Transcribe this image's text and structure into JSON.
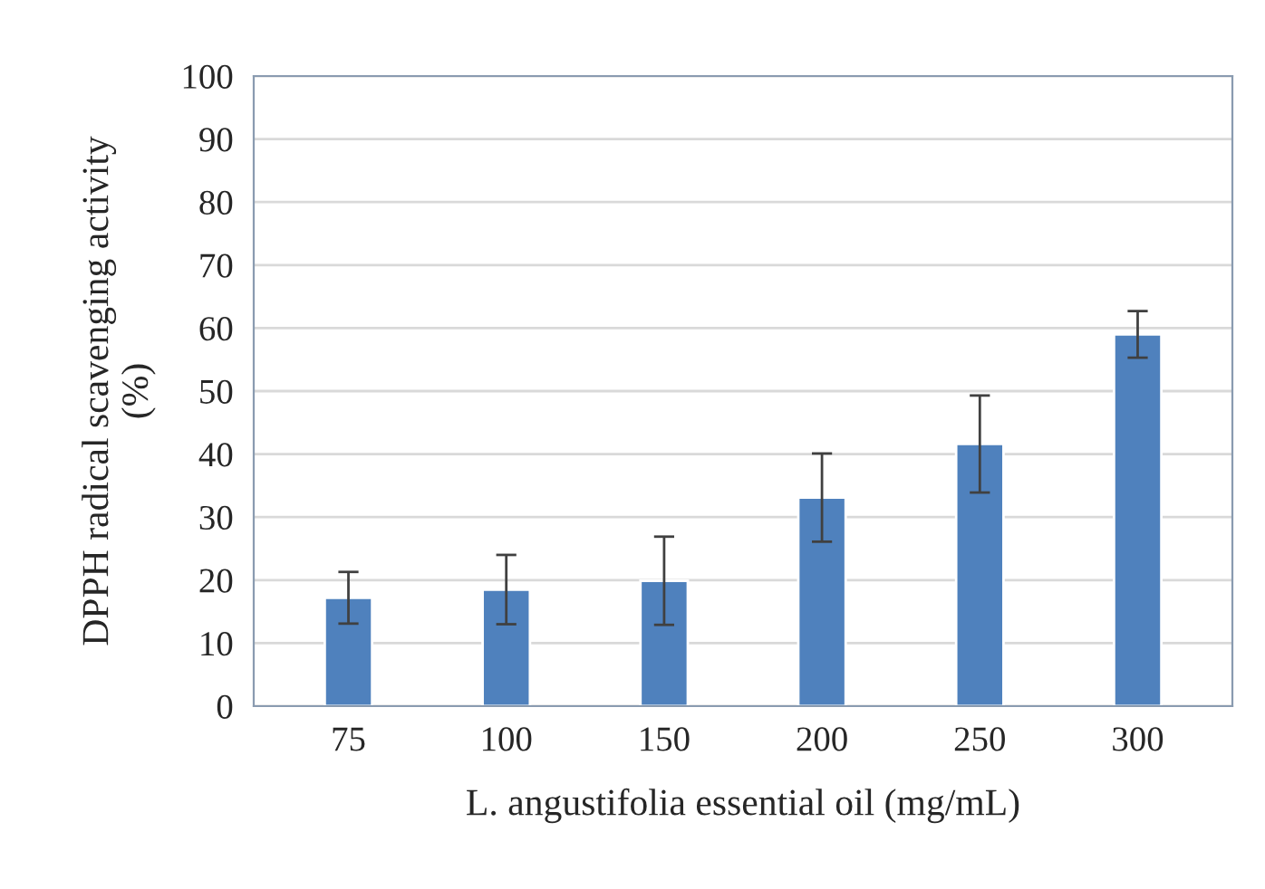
{
  "chart_data": {
    "type": "bar",
    "xlabel": "L. angustifolia essential oil (mg/mL)",
    "ylabel": "DPPH radical scavenging activity\n(%)",
    "categories": [
      "75",
      "100",
      "150",
      "200",
      "250",
      "300"
    ],
    "values": [
      17.2,
      18.5,
      19.9,
      33.1,
      41.6,
      59.0
    ],
    "errors": [
      4.1,
      5.5,
      7.0,
      7.0,
      7.7,
      3.7
    ],
    "color": "#4f81bd",
    "ylim": [
      0,
      100
    ],
    "yticks": [
      0,
      10,
      20,
      30,
      40,
      50,
      60,
      70,
      80,
      90,
      100
    ],
    "grid": "y"
  }
}
